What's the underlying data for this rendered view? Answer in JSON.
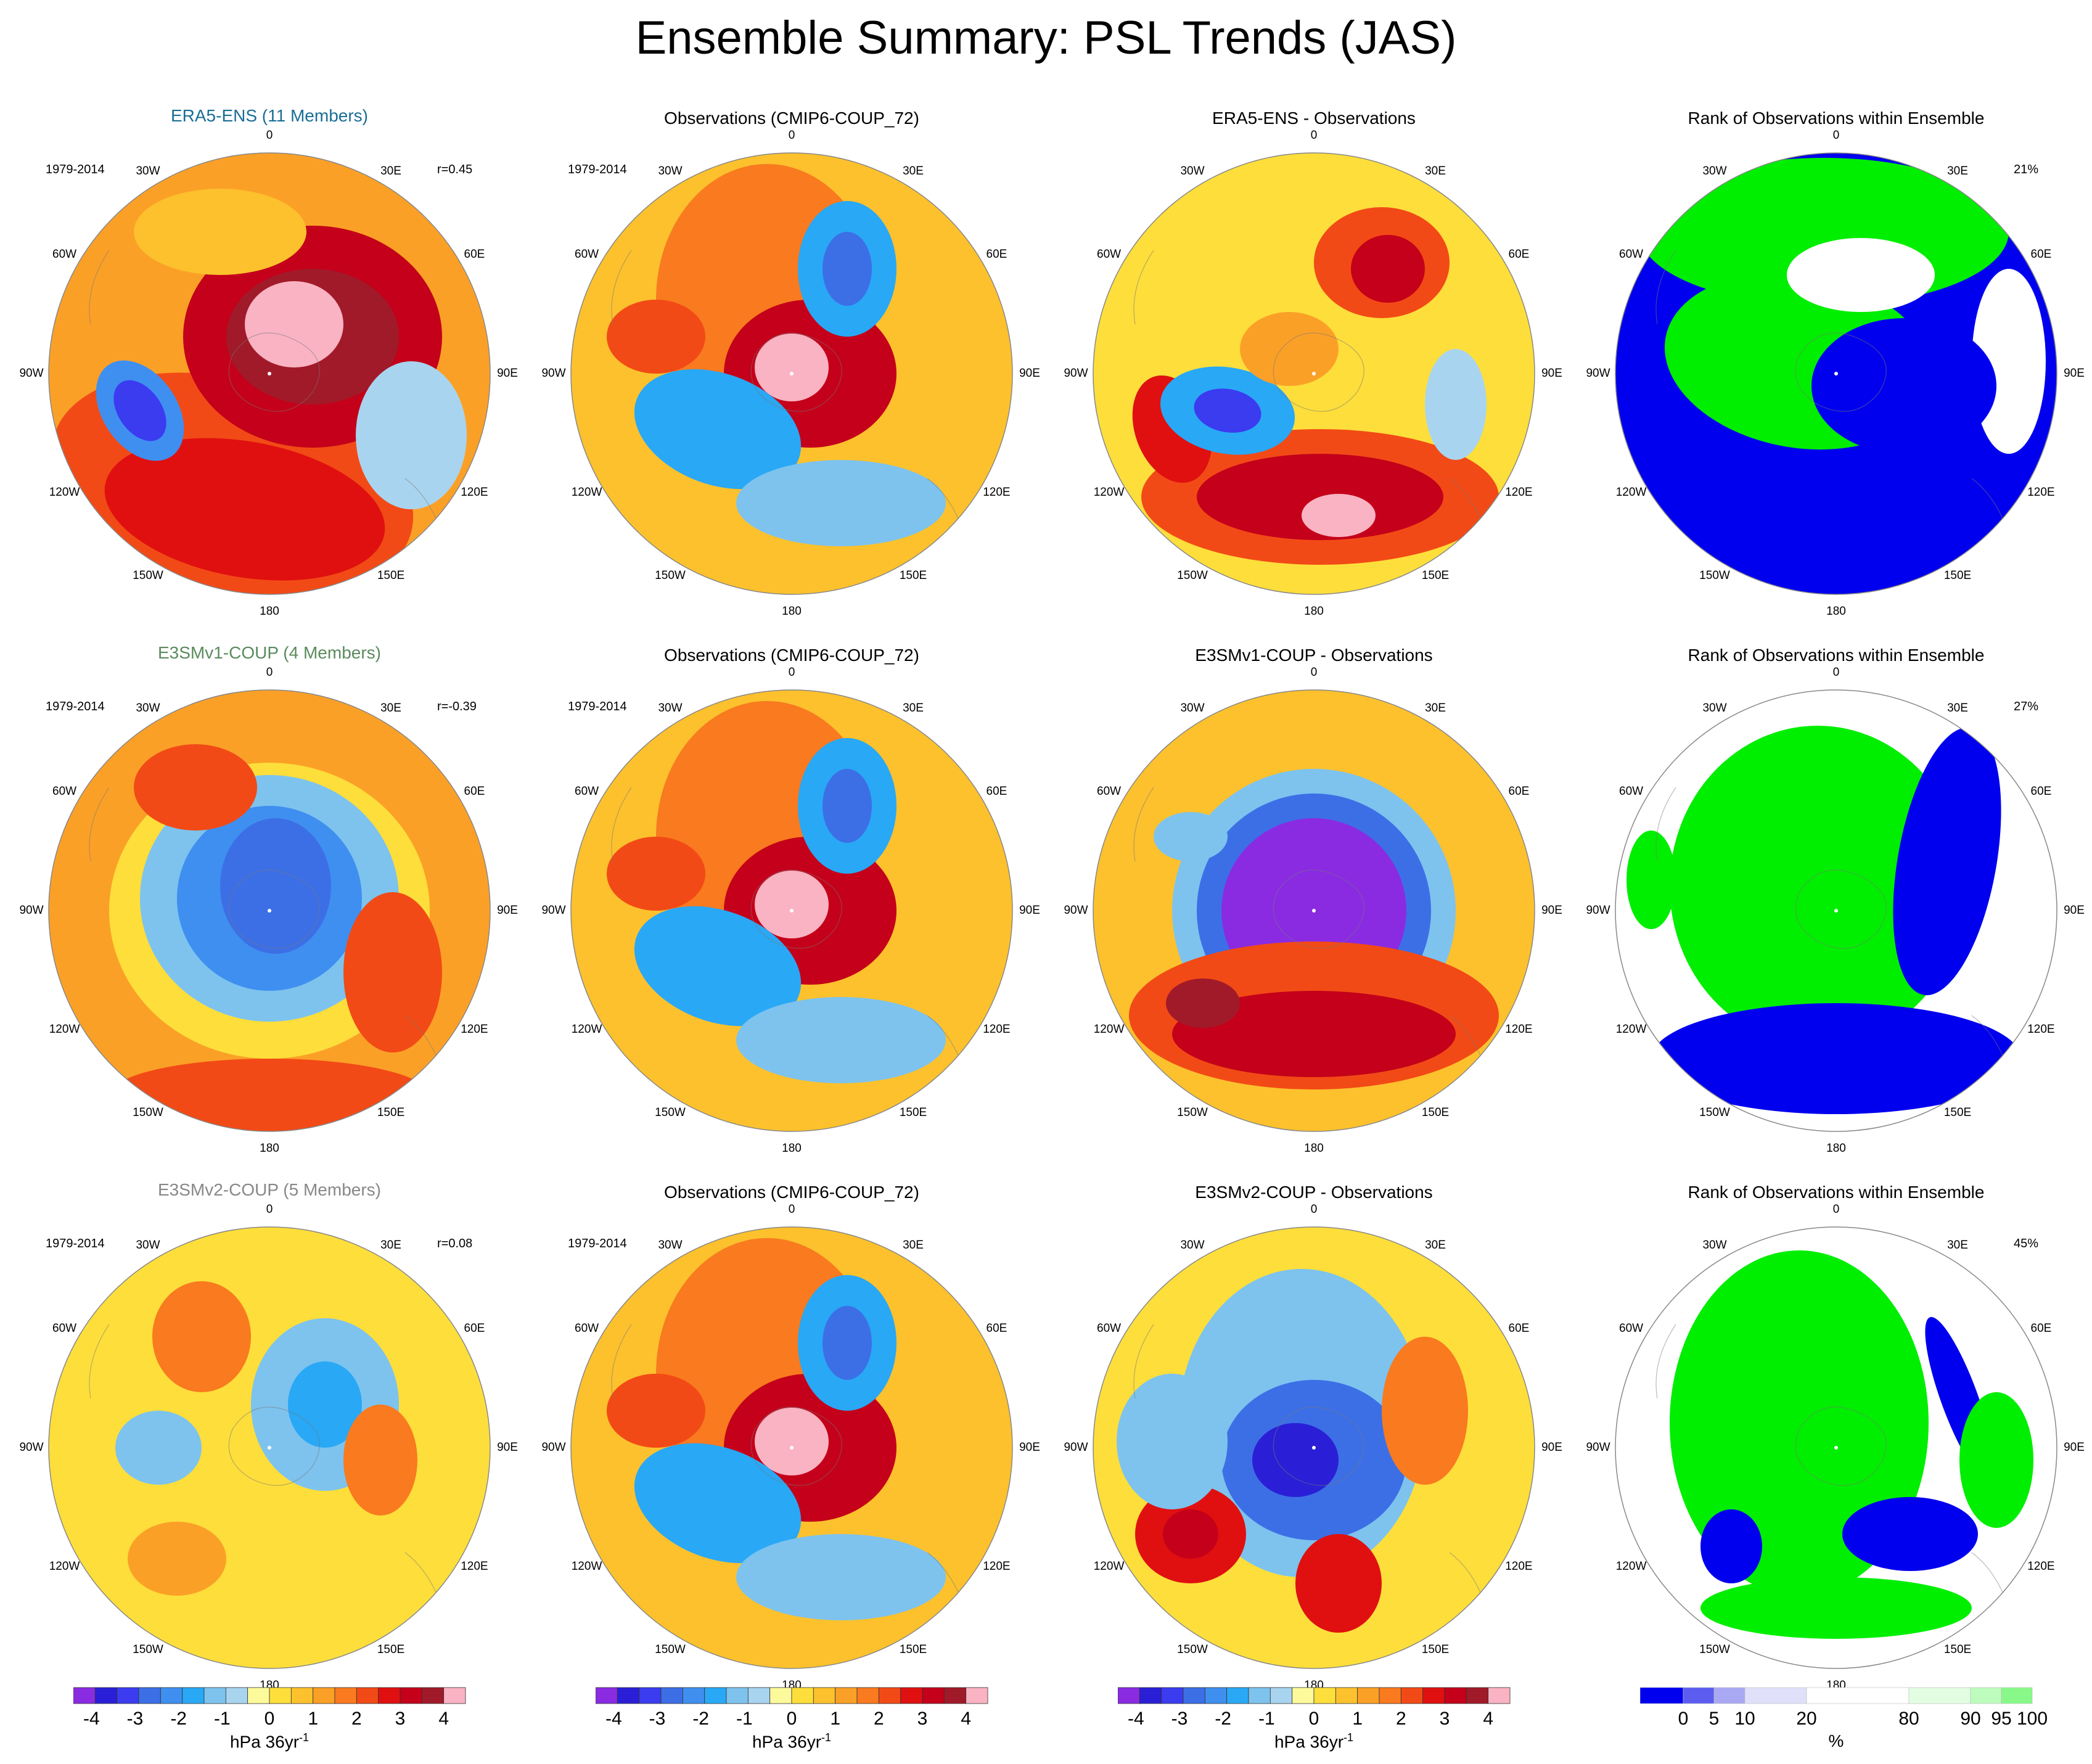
{
  "title": "Ensemble Summary: PSL Trends (JAS)",
  "lon_labels": [
    "0",
    "30E",
    "60E",
    "90E",
    "120E",
    "150E",
    "180",
    "150W",
    "120W",
    "90W",
    "60W",
    "30W"
  ],
  "colors": {
    "ens_row1": "#1a6e96",
    "ens_row2": "#5b8b5e",
    "ens_row3": "#888888",
    "rank_low": "#0000ee",
    "rank_high": "#00ee00"
  },
  "rows": [
    {
      "ens_title": "ERA5-ENS (11 Members)",
      "obs_title": "Observations (CMIP6-COUP_72)",
      "diff_title": "ERA5-ENS - Observations",
      "rank_title": "Rank of Observations within Ensemble",
      "period_ens": "1979-2014",
      "period_obs": "1979-2014",
      "corr": "r=0.45",
      "rank_pct": "21%"
    },
    {
      "ens_title": "E3SMv1-COUP (4 Members)",
      "obs_title": "Observations (CMIP6-COUP_72)",
      "diff_title": "E3SMv1-COUP - Observations",
      "rank_title": "Rank of Observations within Ensemble",
      "period_ens": "1979-2014",
      "period_obs": "1979-2014",
      "corr": "r=-0.39",
      "rank_pct": "27%"
    },
    {
      "ens_title": "E3SMv2-COUP (5 Members)",
      "obs_title": "Observations (CMIP6-COUP_72)",
      "diff_title": "E3SMv2-COUP - Observations",
      "rank_title": "Rank of Observations within Ensemble",
      "period_ens": "1979-2014",
      "period_obs": "1979-2014",
      "corr": "r=0.08",
      "rank_pct": "45%"
    }
  ],
  "psl_colorbar": {
    "tick_labels": [
      "-4",
      "-3",
      "-2",
      "-1",
      "0",
      "1",
      "2",
      "3",
      "4"
    ],
    "units_base": "hPa 36yr",
    "units_exp": "-1",
    "colors": [
      "#8a2be2",
      "#2a1fd6",
      "#3b3bf0",
      "#3c6fe6",
      "#3f8ff0",
      "#29a8f5",
      "#7dc3ee",
      "#a9d4ef",
      "#fdfa9c",
      "#fede3b",
      "#fcc12d",
      "#fba027",
      "#f97a1f",
      "#f24a16",
      "#e01010",
      "#c4001a",
      "#a11a2a",
      "#f9b3c2"
    ]
  },
  "rank_colorbar": {
    "tick_labels": [
      "0",
      "5",
      "10",
      "20",
      "80",
      "90",
      "95",
      "100"
    ],
    "units": "%",
    "colors": [
      "#0000ee",
      "#5c5cf0",
      "#a9a9f3",
      "#e0e0fa",
      "#ffffff",
      "#e2fde2",
      "#bdfcbd",
      "#88f988",
      "#00ee00"
    ]
  },
  "chart_data": [
    {
      "type": "polar-contour",
      "title": "ERA5-ENS (11 Members)",
      "field": "PSL trend",
      "units": "hPa 36yr-1",
      "clim": [
        -4,
        4
      ],
      "period": "1979-2014",
      "correlation": 0.45
    },
    {
      "type": "polar-contour",
      "title": "Observations (CMIP6-COUP_72)",
      "field": "PSL trend",
      "units": "hPa 36yr-1",
      "clim": [
        -4,
        4
      ],
      "period": "1979-2014"
    },
    {
      "type": "polar-contour",
      "title": "ERA5-ENS - Observations",
      "field": "PSL trend difference",
      "units": "hPa 36yr-1",
      "clim": [
        -4,
        4
      ]
    },
    {
      "type": "polar-rank",
      "title": "Rank of Observations within Ensemble",
      "units": "%",
      "rank_percent": 21
    },
    {
      "type": "polar-contour",
      "title": "E3SMv1-COUP (4 Members)",
      "field": "PSL trend",
      "units": "hPa 36yr-1",
      "clim": [
        -4,
        4
      ],
      "period": "1979-2014",
      "correlation": -0.39
    },
    {
      "type": "polar-contour",
      "title": "Observations (CMIP6-COUP_72)",
      "field": "PSL trend",
      "units": "hPa 36yr-1",
      "clim": [
        -4,
        4
      ],
      "period": "1979-2014"
    },
    {
      "type": "polar-contour",
      "title": "E3SMv1-COUP - Observations",
      "field": "PSL trend difference",
      "units": "hPa 36yr-1",
      "clim": [
        -4,
        4
      ]
    },
    {
      "type": "polar-rank",
      "title": "Rank of Observations within Ensemble",
      "units": "%",
      "rank_percent": 27
    },
    {
      "type": "polar-contour",
      "title": "E3SMv2-COUP (5 Members)",
      "field": "PSL trend",
      "units": "hPa 36yr-1",
      "clim": [
        -4,
        4
      ],
      "period": "1979-2014",
      "correlation": 0.08
    },
    {
      "type": "polar-contour",
      "title": "Observations (CMIP6-COUP_72)",
      "field": "PSL trend",
      "units": "hPa 36yr-1",
      "clim": [
        -4,
        4
      ],
      "period": "1979-2014"
    },
    {
      "type": "polar-contour",
      "title": "E3SMv2-COUP - Observations",
      "field": "PSL trend difference",
      "units": "hPa 36yr-1",
      "clim": [
        -4,
        4
      ]
    },
    {
      "type": "polar-rank",
      "title": "Rank of Observations within Ensemble",
      "units": "%",
      "rank_percent": 45
    }
  ]
}
